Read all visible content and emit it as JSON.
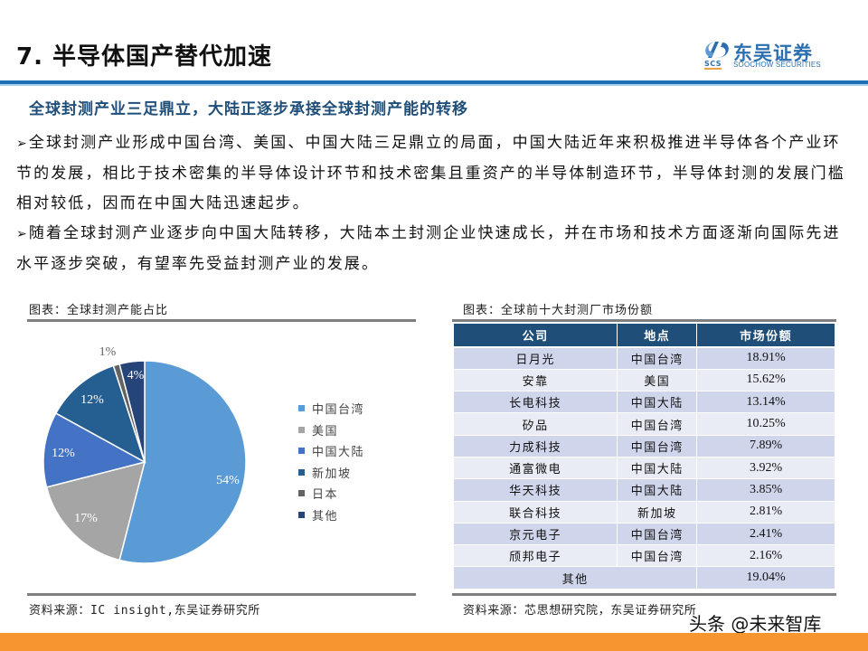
{
  "header": {
    "title": "7. 半导体国产替代加速",
    "logo": {
      "cn": "东吴证券",
      "en": "SOOCHOW SECURITIES",
      "mark": "SCS"
    }
  },
  "section": {
    "heading": "全球封测产业三足鼎立，大陆正逐步承接全球封测产能的转移",
    "bullets": [
      "全球封测产业形成中国台湾、美国、中国大陆三足鼎立的局面，中国大陆近年来积极推进半导体各个产业环节的发展，相比于技术密集的半导体设计环节和技术密集且重资产的半导体制造环节，半导体封测的发展门槛相对较低，因而在中国大陆迅速起步。",
      "随着全球封测产业逐步向中国大陆转移，大陆本土封测企业快速成长，并在市场和技术方面逐渐向国际先进水平逐步突破，有望率先受益封测产业的发展。"
    ],
    "bullet_marker": "➢"
  },
  "figures": {
    "left": {
      "caption": "图表：全球封测产能占比",
      "source": "资料来源：IC insight,东吴证券研究所"
    },
    "right": {
      "caption": "图表：全球前十大封测厂市场份额",
      "source": "资料来源：芯思想研究院，东吴证券研究所"
    }
  },
  "chart_data": {
    "type": "pie",
    "title": "全球封测产能占比",
    "categories": [
      "中国台湾",
      "美国",
      "中国大陆",
      "新加坡",
      "日本",
      "其他"
    ],
    "values": [
      54,
      17,
      12,
      12,
      1,
      4
    ],
    "labels": [
      "54%",
      "17%",
      "12%",
      "12%",
      "1%",
      "4%"
    ],
    "colors": [
      "#5b9bd5",
      "#a5a5a5",
      "#4472c4",
      "#255e91",
      "#636363",
      "#264478"
    ],
    "legend_position": "right"
  },
  "table": {
    "headers": [
      "公司",
      "地点",
      "市场份额"
    ],
    "rows": [
      [
        "日月光",
        "中国台湾",
        "18.91%"
      ],
      [
        "安靠",
        "美国",
        "15.62%"
      ],
      [
        "长电科技",
        "中国大陆",
        "13.14%"
      ],
      [
        "矽品",
        "中国台湾",
        "10.25%"
      ],
      [
        "力成科技",
        "中国台湾",
        "7.89%"
      ],
      [
        "通富微电",
        "中国大陆",
        "3.92%"
      ],
      [
        "华天科技",
        "中国大陆",
        "3.85%"
      ],
      [
        "联合科技",
        "新加坡",
        "2.81%"
      ],
      [
        "京元电子",
        "中国台湾",
        "2.41%"
      ],
      [
        "颀邦电子",
        "中国台湾",
        "2.16%"
      ]
    ],
    "other": {
      "label": "其他",
      "value": "19.04%"
    }
  },
  "watermark": "头条 @未来智库",
  "colors": {
    "brand_blue": "#1f6fb4",
    "heading_navy": "#1f4e79",
    "footer_orange": "#f7962f"
  }
}
